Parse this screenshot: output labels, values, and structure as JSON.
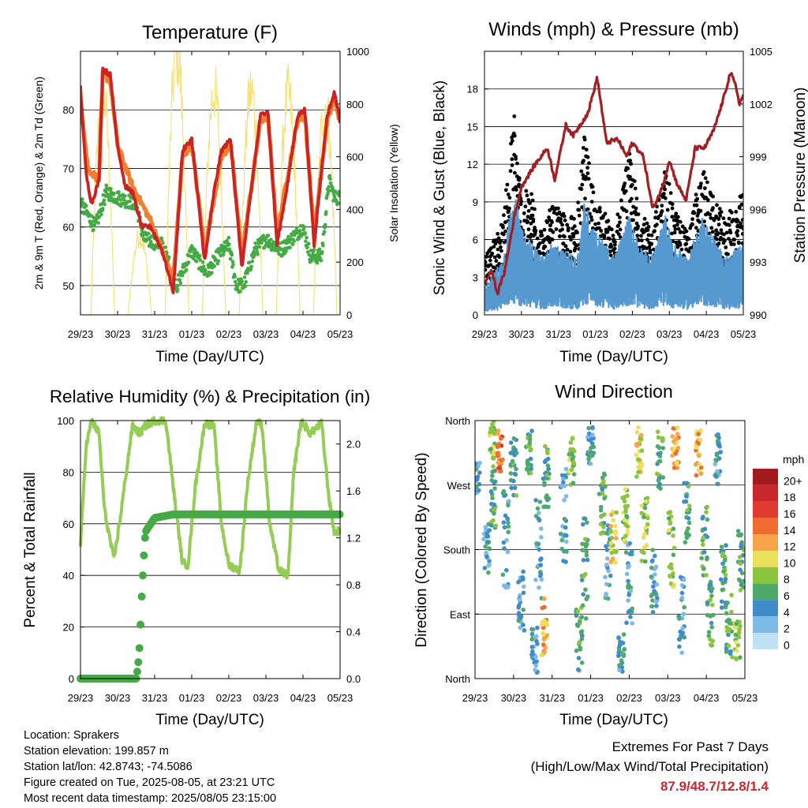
{
  "chart_data": [
    {
      "type": "line",
      "title": "Temperature (F)",
      "xlabel": "Time (Day/UTC)",
      "ylabel": "2m & 9m T (Red, Orange) & 2m Td (Green)",
      "y2label": "Solar Insolation (Yellow)",
      "x_ticks": [
        "29/23",
        "30/23",
        "31/23",
        "01/23",
        "02/23",
        "03/23",
        "04/23",
        "05/23"
      ],
      "ylim": [
        45,
        90
      ],
      "y_ticks": [
        50,
        60,
        70,
        80
      ],
      "y2lim": [
        0,
        1000
      ],
      "y2_ticks": [
        0,
        200,
        400,
        600,
        800,
        1000
      ],
      "grid": true,
      "series": [
        {
          "name": "2m T",
          "color": "#cc2222",
          "x_days": [
            0,
            0.15,
            0.3,
            0.5,
            0.6,
            0.8,
            1.0,
            1.2,
            1.4,
            1.65,
            1.9,
            2.2,
            2.5,
            2.6,
            2.75,
            3.0,
            3.35,
            3.6,
            3.8,
            4.05,
            4.35,
            4.6,
            4.85,
            5.05,
            5.3,
            5.6,
            5.85,
            6.05,
            6.3,
            6.65,
            6.85,
            7.0
          ],
          "y": [
            84,
            69,
            64,
            68,
            87,
            86,
            74,
            67,
            66,
            60,
            60,
            56,
            49,
            58,
            73,
            75,
            54,
            66,
            73,
            75,
            53,
            66,
            79,
            80,
            57,
            68,
            79,
            80,
            57,
            79,
            83,
            78
          ]
        },
        {
          "name": "9m T",
          "color": "#f08030",
          "x_days": [
            0,
            0.2,
            0.5,
            0.6,
            0.8,
            1.0,
            1.4,
            1.9,
            2.5,
            2.75,
            3.0,
            3.35,
            3.8,
            4.05,
            4.35,
            4.85,
            5.05,
            5.3,
            5.85,
            6.05,
            6.3,
            6.65,
            6.85,
            7.0
          ],
          "y": [
            82,
            70,
            68,
            86,
            85,
            74,
            67,
            61,
            51,
            72,
            74,
            56,
            72,
            74,
            55,
            78,
            79,
            59,
            78,
            79,
            59,
            78,
            82,
            78
          ]
        },
        {
          "name": "2m Td",
          "color": "#44aa44",
          "x_days": [
            0,
            0.4,
            0.7,
            1.0,
            1.5,
            1.7,
            2.2,
            2.6,
            3.0,
            3.4,
            3.7,
            4.0,
            4.2,
            4.4,
            4.7,
            5.0,
            5.4,
            5.7,
            6.0,
            6.2,
            6.5,
            6.7,
            6.85,
            7.0
          ],
          "y": [
            64,
            60,
            66,
            65,
            64,
            58,
            57,
            50,
            56,
            52,
            55,
            57,
            50,
            50,
            56,
            58,
            56,
            58,
            60,
            55,
            55,
            68,
            65,
            65
          ]
        },
        {
          "name": "Solar Insolation",
          "axis": "y2",
          "color": "#f6e27a",
          "peaks": [
            {
              "center": 0.6,
              "value": 850
            },
            {
              "center": 1.6,
              "value": 300
            },
            {
              "center": 2.6,
              "value": 1000
            },
            {
              "center": 3.6,
              "value": 850
            },
            {
              "center": 4.6,
              "value": 850
            },
            {
              "center": 5.6,
              "value": 830
            },
            {
              "center": 6.6,
              "value": 800
            }
          ]
        }
      ]
    },
    {
      "type": "scatter",
      "title": "Winds (mph) & Pressure (mb)",
      "xlabel": "Time (Day/UTC)",
      "ylabel": "Sonic Wind & Gust (Blue, Black)",
      "y2label": "Station Pressure (Maroon)",
      "x_ticks": [
        "29/23",
        "30/23",
        "31/23",
        "01/23",
        "02/23",
        "03/23",
        "04/23",
        "05/23"
      ],
      "ylim": [
        0,
        21
      ],
      "y_ticks": [
        0,
        3,
        6,
        9,
        12,
        15,
        18
      ],
      "y2lim": [
        990,
        1005
      ],
      "y2_ticks": [
        990,
        993,
        996,
        999,
        1002,
        1005
      ],
      "grid": true,
      "series": [
        {
          "name": "Gust",
          "color": "#000000",
          "envelope_x": [
            0,
            0.5,
            0.8,
            1.0,
            1.3,
            1.6,
            1.8,
            2.5,
            2.7,
            3.0,
            3.5,
            3.9,
            4.2,
            4.5,
            4.9,
            5.1,
            5.5,
            5.9,
            6.1,
            6.5,
            7.0
          ],
          "envelope_y": [
            4,
            7,
            15,
            9,
            9,
            6,
            8,
            7,
            13,
            9,
            6,
            12,
            8,
            6,
            11,
            8,
            6,
            11,
            9,
            7,
            9
          ]
        },
        {
          "name": "Sonic Wind",
          "color": "#5599d0",
          "envelope_x": [
            0,
            0.5,
            0.8,
            1.0,
            1.3,
            1.6,
            1.8,
            2.5,
            2.7,
            3.0,
            3.5,
            3.9,
            4.2,
            4.5,
            4.9,
            5.1,
            5.5,
            5.9,
            6.1,
            6.5,
            7.0
          ],
          "envelope_y": [
            2,
            4,
            9,
            6,
            5,
            4,
            5,
            4,
            8,
            6,
            4,
            7,
            5,
            4,
            7,
            5,
            4,
            7,
            6,
            4,
            5
          ]
        },
        {
          "name": "Station Pressure",
          "axis": "y2",
          "color": "#a31e22",
          "x_days": [
            0,
            0.2,
            0.35,
            0.55,
            0.8,
            1.0,
            1.35,
            1.7,
            1.9,
            2.2,
            2.4,
            2.8,
            3.05,
            3.3,
            3.6,
            3.85,
            4.0,
            4.3,
            4.55,
            4.8,
            5.0,
            5.2,
            5.45,
            5.7,
            5.95,
            6.2,
            6.45,
            6.65,
            6.8,
            6.9,
            7.0
          ],
          "y": [
            991.8,
            992.5,
            991.2,
            992.5,
            995.5,
            997.3,
            998.5,
            999.5,
            997.7,
            1000.8,
            1000.2,
            1001.5,
            1003.5,
            999.8,
            1000.0,
            999.0,
            999.8,
            999.0,
            996.0,
            997.2,
            998.8,
            997.5,
            996.5,
            999.5,
            999.5,
            1000.5,
            1002.2,
            1003.8,
            1003.0,
            1002.0,
            1002.5
          ]
        }
      ]
    },
    {
      "type": "line",
      "title": "Relative Humidity (%) & Precipitation (in)",
      "xlabel": "Time (Day/UTC)",
      "ylabel": "Percent & Total Rainfall",
      "x_ticks": [
        "29/23",
        "30/23",
        "31/23",
        "01/23",
        "02/23",
        "03/23",
        "04/23",
        "05/23"
      ],
      "ylim": [
        0,
        100
      ],
      "y_ticks": [
        0,
        20,
        40,
        60,
        80,
        100
      ],
      "y2lim": [
        0,
        2.2
      ],
      "y2_ticks": [
        0.0,
        0.4,
        0.8,
        1.2,
        1.6,
        2.0
      ],
      "grid": true,
      "series": [
        {
          "name": "Relative Humidity",
          "color": "#95cc55",
          "x_days": [
            0,
            0.15,
            0.3,
            0.5,
            0.65,
            0.9,
            1.05,
            1.4,
            1.6,
            1.75,
            2.0,
            2.3,
            2.6,
            2.75,
            2.9,
            3.1,
            3.35,
            3.6,
            3.8,
            4.0,
            4.3,
            4.5,
            4.75,
            4.9,
            5.1,
            5.35,
            5.6,
            5.75,
            5.95,
            6.2,
            6.5,
            6.7,
            6.85,
            7.0
          ],
          "y": [
            52,
            90,
            100,
            95,
            65,
            46,
            60,
            98,
            95,
            98,
            100,
            100,
            62,
            45,
            44,
            75,
            99,
            98,
            60,
            44,
            42,
            75,
            100,
            98,
            60,
            42,
            40,
            80,
            100,
            95,
            99,
            70,
            56,
            58
          ]
        },
        {
          "name": "Total Precipitation",
          "axis": "y2",
          "color": "#44aa44",
          "x_days": [
            0,
            1.5,
            1.55,
            1.6,
            1.65,
            1.7,
            1.75,
            1.85,
            2.0,
            2.5,
            7.0
          ],
          "y": [
            0,
            0,
            0.1,
            0.3,
            0.7,
            1.0,
            1.25,
            1.3,
            1.37,
            1.4,
            1.4
          ]
        }
      ]
    },
    {
      "type": "scatter",
      "title": "Wind Direction",
      "xlabel": "Time (Day/UTC)",
      "ylabel": "Direction (Colored By Speed)",
      "x_ticks": [
        "29/23",
        "30/23",
        "31/23",
        "01/23",
        "02/23",
        "03/23",
        "04/23",
        "05/23"
      ],
      "y_ticks": [
        "North",
        "East",
        "South",
        "West",
        "North"
      ],
      "grid": true,
      "colorbar": {
        "title": "mph",
        "labels": [
          "20+",
          "18",
          "16",
          "14",
          "12",
          "10",
          "8",
          "6",
          "4",
          "2",
          "0"
        ],
        "colors": [
          "#a31a1c",
          "#c8262a",
          "#e03a30",
          "#f06b30",
          "#f6a34a",
          "#ebe05a",
          "#8cc43c",
          "#4daa6a",
          "#3f8cc8",
          "#7fb9e6",
          "#bfe1f6"
        ]
      }
    }
  ],
  "footer": {
    "location": "Location: Sprakers",
    "elevation": "Station elevation: 199.857 m",
    "latlon": "Station lat/lon: 42.8743; -74.5086",
    "created": "Figure created on Tue, 2025-08-05, at 23:21 UTC",
    "timestamp": "Most recent data timestamp: 2025/08/05 23:15:00"
  },
  "extremes": {
    "title": "Extremes For Past 7 Days",
    "subtitle": "(High/Low/Max Wind/Total Precipitation)",
    "values": "87.9/48.7/12.8/1.4"
  }
}
